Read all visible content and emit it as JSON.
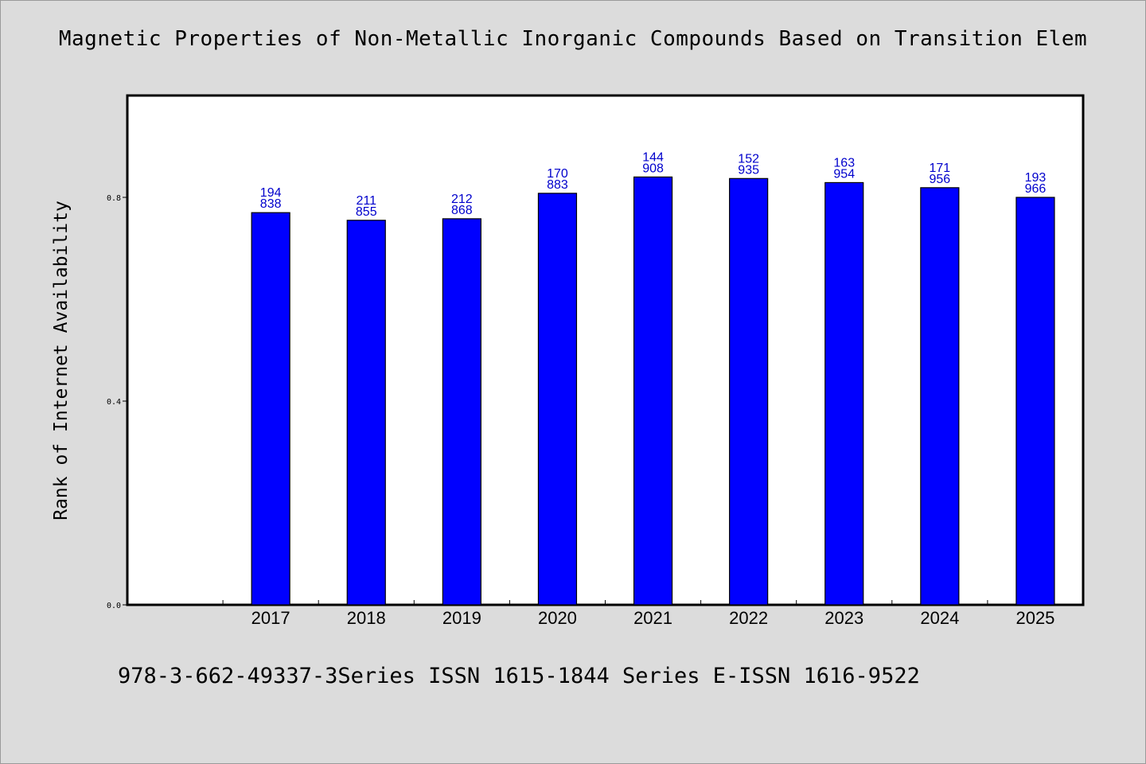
{
  "chart_data": {
    "type": "bar",
    "title": "Magnetic Properties of Non-Metallic Inorganic Compounds Based on Transition Elem",
    "xlabel": "",
    "ylabel": "Rank of Internet Availability",
    "categories": [
      "2017",
      "2018",
      "2019",
      "2020",
      "2021",
      "2022",
      "2023",
      "2024",
      "2025"
    ],
    "values": [
      0.77,
      0.755,
      0.758,
      0.808,
      0.84,
      0.837,
      0.829,
      0.819,
      0.8
    ],
    "data_labels": [
      [
        "194",
        "838"
      ],
      [
        "211",
        "855"
      ],
      [
        "212",
        "868"
      ],
      [
        "170",
        "883"
      ],
      [
        "144",
        "908"
      ],
      [
        "152",
        "935"
      ],
      [
        "163",
        "954"
      ],
      [
        "171",
        "956"
      ],
      [
        "193",
        "966"
      ]
    ],
    "yticks": [
      "0.0",
      "0.4",
      "0.8"
    ],
    "ylim": [
      0,
      1.0
    ],
    "grid": false,
    "legend": "none",
    "colors": {
      "bar": "#0000ff",
      "label": "#0000cc",
      "plot_background": "#ffffff",
      "figure_background": "#dcdcdc"
    }
  },
  "footer": "978-3-662-49337-3Series ISSN 1615-1844 Series E-ISSN 1616-9522"
}
